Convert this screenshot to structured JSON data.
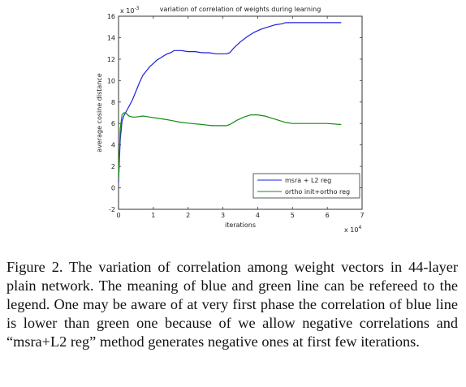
{
  "chart_data": {
    "type": "line",
    "title": "variation of correlation of weights during learning",
    "xlabel": "iterations",
    "ylabel": "average cosine distance",
    "x_multiplier": "x 10",
    "x_multiplier_exp": "4",
    "y_multiplier": "x 10",
    "y_multiplier_exp": "-3",
    "xlim": [
      0,
      7
    ],
    "ylim": [
      -2,
      16
    ],
    "xticks": [
      0,
      1,
      2,
      3,
      4,
      5,
      6,
      7
    ],
    "yticks": [
      -2,
      0,
      2,
      4,
      6,
      8,
      10,
      12,
      14,
      16
    ],
    "grid": false,
    "legend_position": "bottom-right",
    "series": [
      {
        "name": "msra + L2 reg",
        "color": "#1f1fdc",
        "x": [
          0,
          0.05,
          0.1,
          0.15,
          0.2,
          0.3,
          0.4,
          0.5,
          0.6,
          0.7,
          0.8,
          0.9,
          1.0,
          1.1,
          1.2,
          1.3,
          1.4,
          1.5,
          1.6,
          1.8,
          2.0,
          2.2,
          2.4,
          2.6,
          2.8,
          3.0,
          3.1,
          3.2,
          3.3,
          3.5,
          3.7,
          3.9,
          4.1,
          4.3,
          4.5,
          4.7,
          4.8,
          5.0,
          5.5,
          6.0,
          6.4
        ],
        "y": [
          0.5,
          4.5,
          6.2,
          6.7,
          7.0,
          7.6,
          8.2,
          9.0,
          9.8,
          10.5,
          10.9,
          11.3,
          11.6,
          11.9,
          12.1,
          12.3,
          12.5,
          12.6,
          12.8,
          12.8,
          12.7,
          12.7,
          12.6,
          12.6,
          12.5,
          12.5,
          12.5,
          12.6,
          13.0,
          13.6,
          14.1,
          14.5,
          14.8,
          15.0,
          15.2,
          15.3,
          15.4,
          15.4,
          15.4,
          15.4,
          15.4
        ]
      },
      {
        "name": "ortho init+ortho reg",
        "color": "#148c14",
        "x": [
          0,
          0.05,
          0.1,
          0.15,
          0.2,
          0.3,
          0.4,
          0.5,
          0.7,
          0.9,
          1.1,
          1.3,
          1.5,
          1.8,
          2.1,
          2.4,
          2.7,
          3.0,
          3.1,
          3.2,
          3.4,
          3.6,
          3.8,
          4.0,
          4.2,
          4.5,
          4.8,
          5.0,
          5.5,
          6.0,
          6.4
        ],
        "y": [
          0.8,
          5.5,
          6.8,
          7.0,
          7.0,
          6.7,
          6.6,
          6.6,
          6.7,
          6.6,
          6.5,
          6.4,
          6.3,
          6.1,
          6.0,
          5.9,
          5.8,
          5.8,
          5.8,
          5.9,
          6.3,
          6.6,
          6.8,
          6.8,
          6.7,
          6.4,
          6.1,
          6.0,
          6.0,
          6.0,
          5.9
        ]
      }
    ]
  },
  "caption": "Figure 2. The variation of correlation among weight vectors in 44-layer plain network.  The meaning of blue and green line can be refereed to the legend.  One may be aware of at very first phase the correlation of blue line is lower than green one because of we allow negative correlations and “msra+L2 reg” method generates negative ones at first few iterations."
}
